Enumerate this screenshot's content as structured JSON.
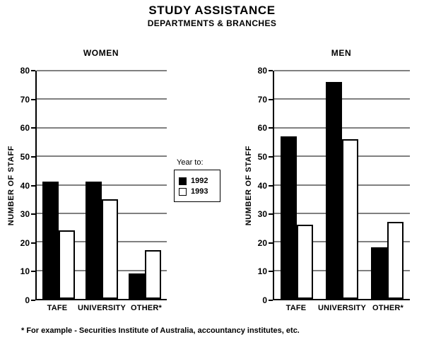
{
  "page": {
    "title": "STUDY ASSISTANCE",
    "subtitle": "DEPARTMENTS & BRANCHES",
    "footnote": "* For example - Securities Institute of Australia, accountancy institutes, etc."
  },
  "legend": {
    "heading": "Year to:",
    "items": [
      {
        "label": "1992",
        "color": "#000000"
      },
      {
        "label": "1993",
        "color": "#ffffff"
      }
    ]
  },
  "chart_data": [
    {
      "type": "bar",
      "title": "WOMEN",
      "ylabel": "NUMBER OF STAFF",
      "ylim": [
        0,
        80
      ],
      "ytick_step": 10,
      "grid": true,
      "categories": [
        "TAFE",
        "UNIVERSITY",
        "OTHER*"
      ],
      "series": [
        {
          "name": "1992",
          "color": "#000000",
          "values": [
            41,
            41,
            9
          ]
        },
        {
          "name": "1993",
          "color": "#ffffff",
          "values": [
            24,
            35,
            17
          ]
        }
      ],
      "legend_position": "between-charts"
    },
    {
      "type": "bar",
      "title": "MEN",
      "ylabel": "NUMBER OF STAFF",
      "ylim": [
        0,
        80
      ],
      "ytick_step": 10,
      "grid": true,
      "categories": [
        "TAFE",
        "UNIVERSITY",
        "OTHER*"
      ],
      "series": [
        {
          "name": "1992",
          "color": "#000000",
          "values": [
            57,
            76,
            18
          ]
        },
        {
          "name": "1993",
          "color": "#ffffff",
          "values": [
            26,
            56,
            27
          ]
        }
      ],
      "legend_position": "between-charts"
    }
  ]
}
